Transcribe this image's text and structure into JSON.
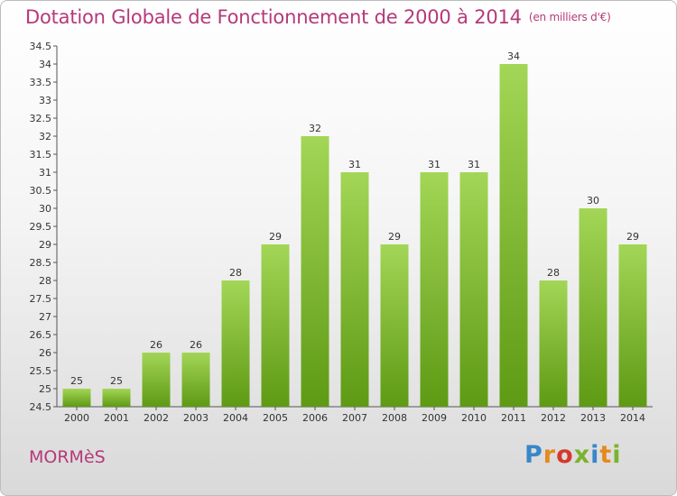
{
  "header": {
    "title": "Dotation Globale de Fonctionnement de 2000 à 2014",
    "subtitle": "(en milliers d'€)"
  },
  "footer": {
    "commune": "MORMèS",
    "logo": "Proxiti"
  },
  "colors": {
    "title": "#b5397a",
    "bar_top": "#a3d656",
    "bar_bottom": "#5e9a14"
  },
  "chart_data": {
    "type": "bar",
    "categories": [
      "2000",
      "2001",
      "2002",
      "2003",
      "2004",
      "2005",
      "2006",
      "2007",
      "2008",
      "2009",
      "2010",
      "2011",
      "2012",
      "2013",
      "2014"
    ],
    "values": [
      25,
      25,
      26,
      26,
      28,
      29,
      32,
      31,
      29,
      31,
      31,
      34,
      28,
      30,
      29
    ],
    "ylim": [
      24.5,
      34.5
    ],
    "yticks": [
      "24.5",
      "25",
      "25.5",
      "26",
      "26.5",
      "27",
      "27.5",
      "28",
      "28.5",
      "29",
      "29.5",
      "30",
      "30.5",
      "31",
      "31.5",
      "32",
      "32.5",
      "33",
      "33.5",
      "34",
      "34.5"
    ],
    "grid": false,
    "legend": "none"
  }
}
